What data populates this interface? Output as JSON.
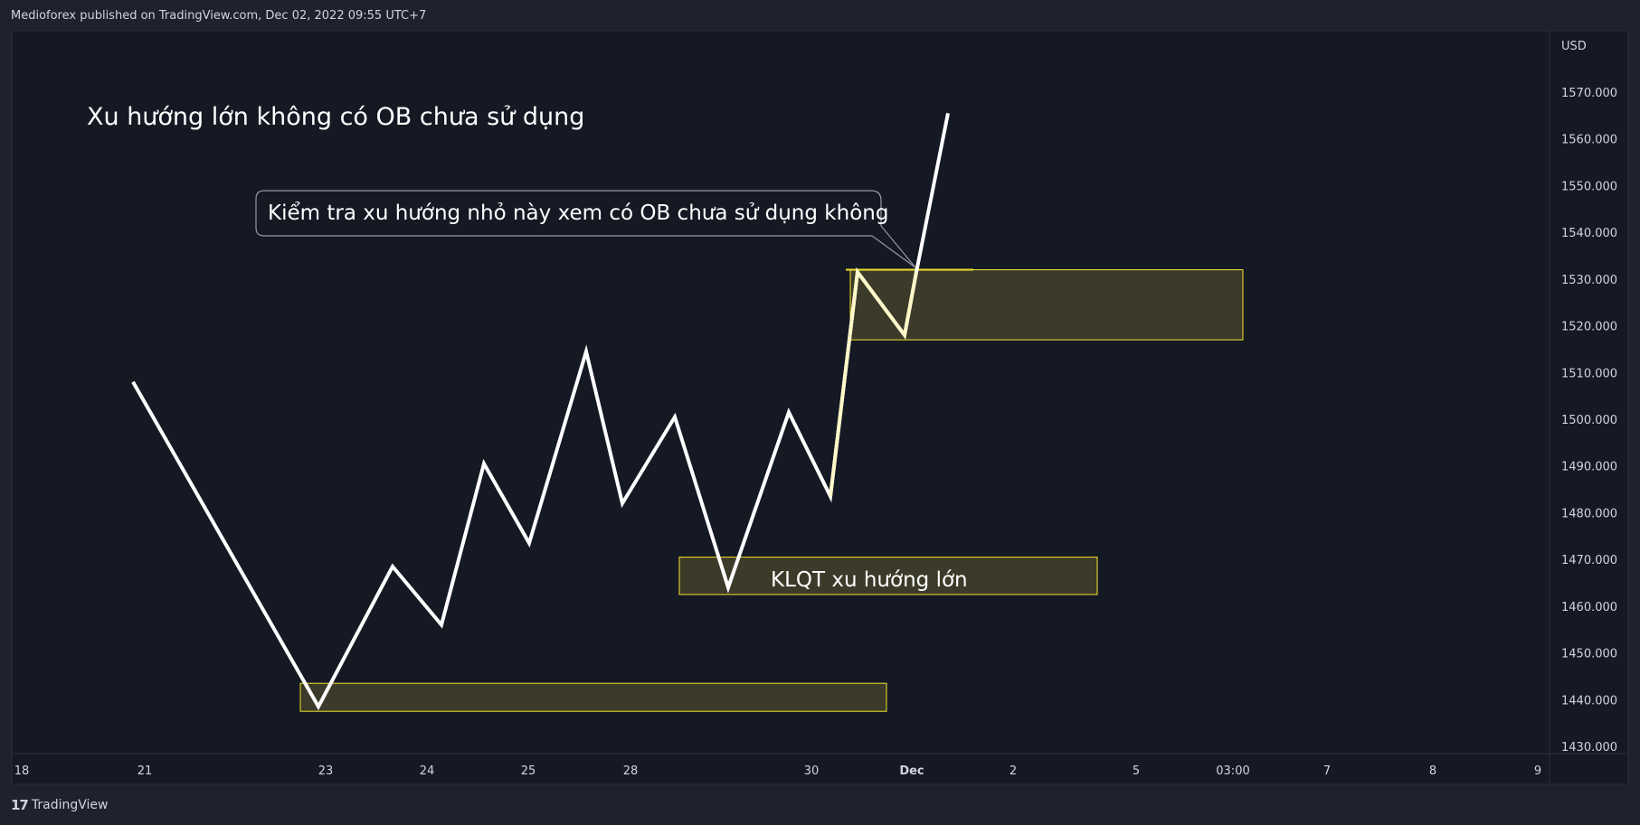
{
  "header": {
    "publish_info": "Medioforex published on TradingView.com, Dec 02, 2022 09:55 UTC+7"
  },
  "footer": {
    "brand": "TradingView",
    "logo_glyph": "17"
  },
  "colors": {
    "background": "#1e222d",
    "pane": "#151924",
    "grid_border": "#2a2e39",
    "line": "#ffffff",
    "zone_fill": "#3c3b2a",
    "zone_border": "#f2e32a",
    "text": "#d1d4dc"
  },
  "chart_data": {
    "type": "line",
    "currency": "USD",
    "title": "Xu hướng lớn không có OB chưa sử dụng",
    "ylim": [
      1427,
      1582
    ],
    "y_ticks": [
      "1570.000",
      "1560.000",
      "1550.000",
      "1540.000",
      "1530.000",
      "1520.000",
      "1510.000",
      "1500.000",
      "1490.000",
      "1480.000",
      "1470.000",
      "1460.000",
      "1450.000",
      "1440.000",
      "1430.000"
    ],
    "x_ticks": [
      "18",
      "21",
      "23",
      "24",
      "25",
      "28",
      "30",
      "Dec",
      "2",
      "5",
      "03:00",
      "7",
      "8",
      "9"
    ],
    "series": [
      {
        "name": "",
        "values": [
          1508,
          1438.5,
          1468.5,
          1456,
          1490.5,
          1473.5,
          1514.5,
          1482,
          1500.5,
          1464,
          1501.5,
          1483.5,
          1531.5,
          1518,
          1531.5,
          1565.5
        ]
      }
    ],
    "annotations": {
      "callout": "Kiểm tra xu hướng nhỏ này xem có OB chưa sử dụng không",
      "zone_label": "KLQT xu hướng lớn"
    },
    "zones": [
      {
        "from": 1517,
        "to": 1532,
        "label": ""
      },
      {
        "from": 1462.5,
        "to": 1470.5,
        "label": "KLQT xu hướng lớn"
      },
      {
        "from": 1437.5,
        "to": 1443.5,
        "label": ""
      }
    ],
    "level_line": 1532
  }
}
